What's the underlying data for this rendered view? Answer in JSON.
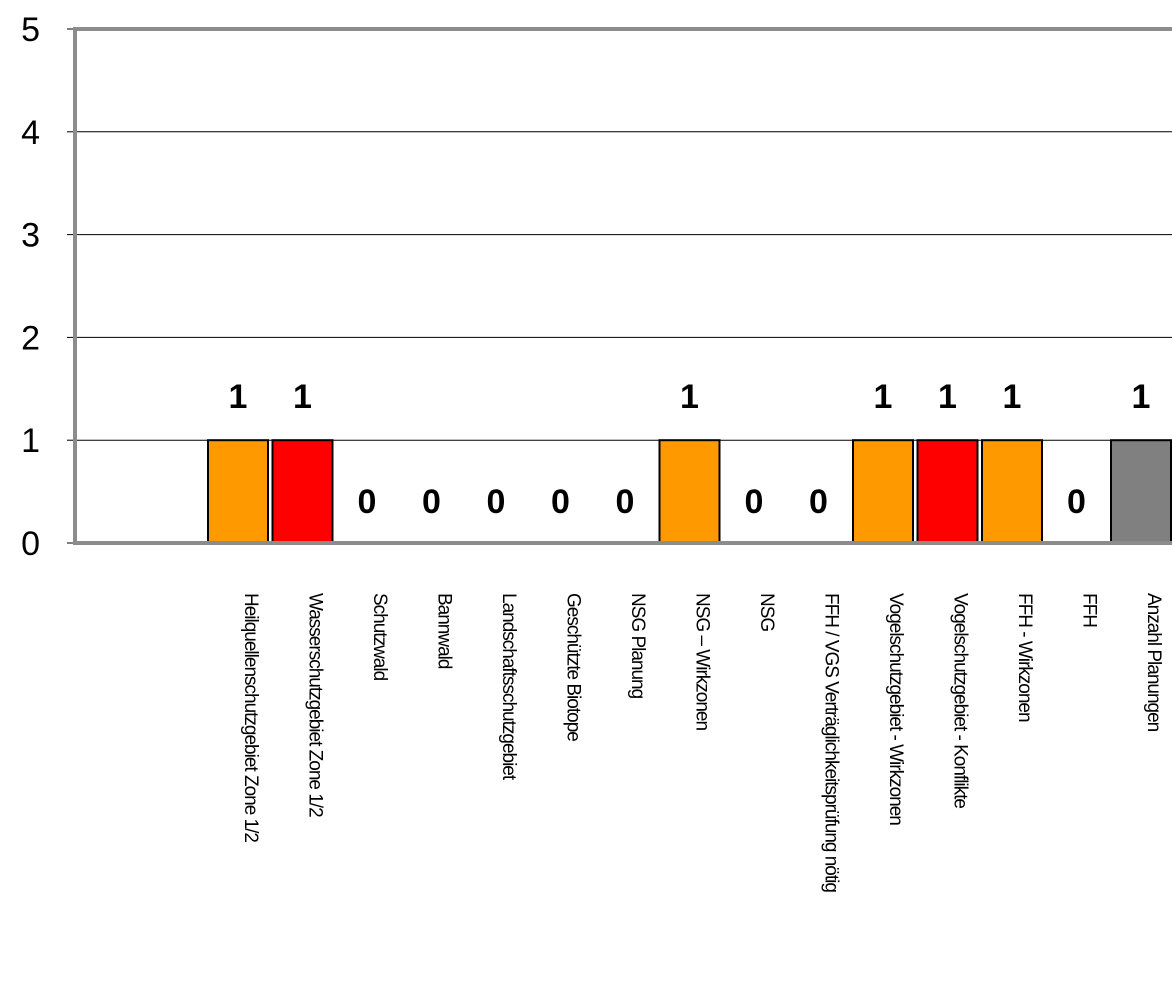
{
  "chart_data": {
    "type": "bar",
    "categories": [
      "Heilquellenschutzgebiet Zone 1/2",
      "Wasserschutzgebiet Zone 1/2",
      "Schutzwald",
      "Bannwald",
      "Landschaftsschutzgebiet",
      "Geschützte Biotope",
      "NSG Planung",
      "NSG – Wirkzonen",
      "NSG",
      "FFH / VGS Verträglichkeitsprüfung nötig",
      "Vogelschutzgebiet - Wirkzonen",
      "Vogelschutzgebiet - Konflikte",
      "FFH - Wirkzonen",
      "FFH",
      "Anzahl Planungen"
    ],
    "values": [
      1,
      1,
      0,
      0,
      0,
      0,
      0,
      1,
      0,
      0,
      1,
      1,
      1,
      0,
      1
    ],
    "colors": [
      "#FF9900",
      "#FF0000",
      "#FF9900",
      "#FF9900",
      "#FF9900",
      "#FF9900",
      "#FF9900",
      "#FF9900",
      "#FF9900",
      "#FF9900",
      "#FF9900",
      "#FF0000",
      "#FF9900",
      "#FF9900",
      "#808080"
    ],
    "yticks": [
      "0",
      "1",
      "2",
      "3",
      "4",
      "5"
    ],
    "ylim": [
      0,
      5
    ],
    "grid": true,
    "title": "",
    "xlabel": "",
    "ylabel": ""
  }
}
